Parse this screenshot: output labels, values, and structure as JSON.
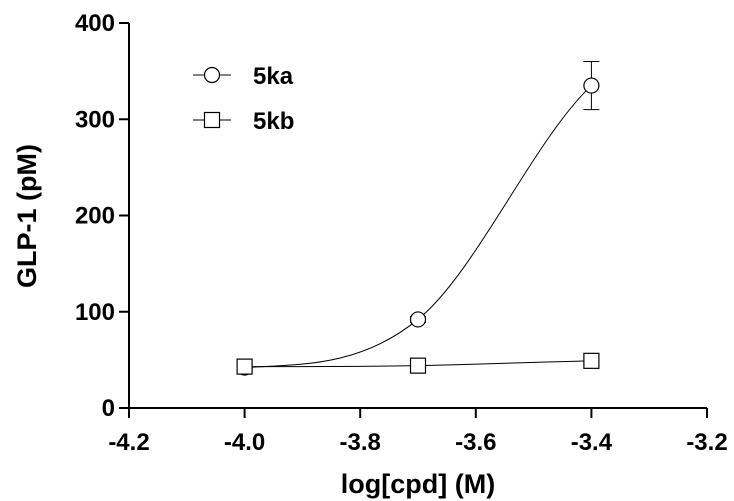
{
  "chart_data": {
    "type": "scatter",
    "xlabel": "log[cpd]  (M)",
    "ylabel": "GLP-1 (pM)",
    "xlim": [
      -4.2,
      -3.2
    ],
    "ylim": [
      0,
      400
    ],
    "xticks": [
      -4.2,
      -4.0,
      -3.8,
      -3.6,
      -3.4,
      -3.2
    ],
    "xtick_labels": [
      "-4.2",
      "-4.0",
      "-3.8",
      "-3.6",
      "-3.4",
      "-3.2"
    ],
    "yticks": [
      0,
      100,
      200,
      300,
      400
    ],
    "ytick_labels": [
      "0",
      "100",
      "200",
      "300",
      "400"
    ],
    "legend_position": "top-left",
    "grid": false,
    "series": [
      {
        "name": "5ka",
        "marker": "circle",
        "x": [
          -4.0,
          -3.7,
          -3.4
        ],
        "y": [
          42,
          92,
          335
        ],
        "error": [
          4,
          3,
          25
        ]
      },
      {
        "name": "5kb",
        "marker": "square",
        "x": [
          -4.0,
          -3.7,
          -3.4
        ],
        "y": [
          43,
          44,
          49
        ],
        "error": [
          3,
          2,
          3
        ]
      }
    ]
  }
}
